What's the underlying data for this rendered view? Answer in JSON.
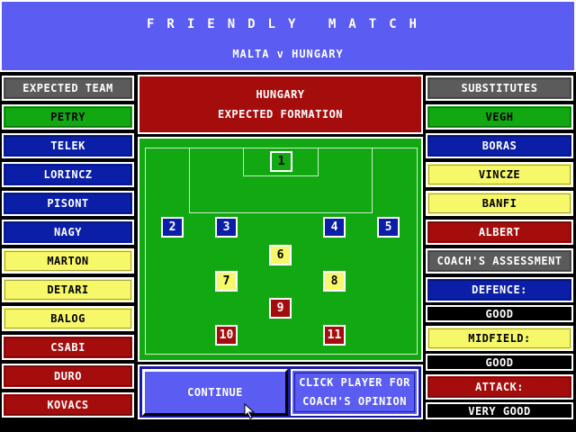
{
  "header": {
    "title": "FRIENDLY MATCH",
    "match": "MALTA  v  HUNGARY"
  },
  "left": {
    "heading": "EXPECTED TEAM",
    "players": [
      {
        "name": "PETRY",
        "color": "green"
      },
      {
        "name": "TELEK",
        "color": "blue"
      },
      {
        "name": "LORINCZ",
        "color": "blue"
      },
      {
        "name": "PISONT",
        "color": "blue"
      },
      {
        "name": "NAGY",
        "color": "blue"
      },
      {
        "name": "MARTON",
        "color": "yellow"
      },
      {
        "name": "DETARI",
        "color": "yellow"
      },
      {
        "name": "BALOG",
        "color": "yellow"
      },
      {
        "name": "CSABI",
        "color": "red"
      },
      {
        "name": "DURO",
        "color": "red"
      },
      {
        "name": "KOVACS",
        "color": "red"
      }
    ]
  },
  "formation": {
    "line1": "HUNGARY",
    "line2": "EXPECTED FORMATION",
    "numbers": [
      "1",
      "2",
      "3",
      "4",
      "5",
      "6",
      "7",
      "8",
      "9",
      "10",
      "11"
    ]
  },
  "right": {
    "heading": "SUBSTITUTES",
    "subs": [
      {
        "name": "VEGH",
        "color": "green"
      },
      {
        "name": "BORAS",
        "color": "blue"
      },
      {
        "name": "VINCZE",
        "color": "yellow"
      },
      {
        "name": "BANFI",
        "color": "yellow"
      },
      {
        "name": "ALBERT",
        "color": "red"
      }
    ],
    "assessment_heading": "COACH'S ASSESSMENT",
    "assessment": [
      {
        "label": "DEFENCE:",
        "value": "GOOD"
      },
      {
        "label": "MIDFIELD:",
        "value": "GOOD"
      },
      {
        "label": "ATTACK:",
        "value": "VERY GOOD"
      }
    ]
  },
  "controls": {
    "continue": "CONTINUE",
    "opinion_line1": "CLICK PLAYER FOR",
    "opinion_line2": "COACH'S OPINION"
  },
  "colors": {
    "header_blue": "#5a5cf2",
    "blue": "#0a1ea8",
    "green": "#12a812",
    "yellow": "#f7f76a",
    "red": "#a50d0d",
    "grey": "#5b5b5b"
  },
  "icons": {
    "cursor": "mouse-pointer-icon"
  }
}
